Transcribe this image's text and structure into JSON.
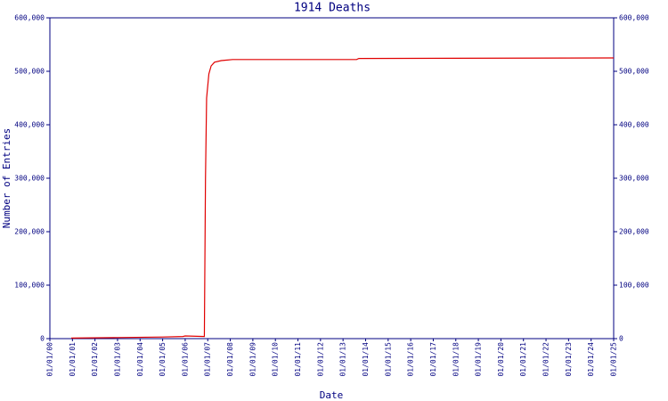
{
  "chart_data": {
    "type": "line",
    "title": "1914 Deaths",
    "x_label": "Date",
    "y_label": "Number of Entries",
    "x": [
      0.95,
      3,
      5,
      5.9,
      6.0,
      6.85,
      6.9,
      6.95,
      7.05,
      7.15,
      7.3,
      7.6,
      8.1,
      13.6,
      13.7,
      25
    ],
    "series": [
      {
        "color": "#e00000",
        "values": [
          1000,
          2000,
          3000,
          4000,
          5000,
          4000,
          300000,
          450000,
          495000,
          510000,
          517000,
          520000,
          522000,
          522000,
          524000,
          525000
        ]
      }
    ],
    "xlim": [
      0,
      25
    ],
    "xticks": [
      {
        "value": 0,
        "label": "01/01/00"
      },
      {
        "value": 1,
        "label": "01/01/01"
      },
      {
        "value": 2,
        "label": "01/01/02"
      },
      {
        "value": 3,
        "label": "01/01/03"
      },
      {
        "value": 4,
        "label": "01/01/04"
      },
      {
        "value": 5,
        "label": "01/01/05"
      },
      {
        "value": 6,
        "label": "01/01/06"
      },
      {
        "value": 7,
        "label": "01/01/07"
      },
      {
        "value": 8,
        "label": "01/01/08"
      },
      {
        "value": 9,
        "label": "01/01/09"
      },
      {
        "value": 10,
        "label": "01/01/10"
      },
      {
        "value": 11,
        "label": "01/01/11"
      },
      {
        "value": 12,
        "label": "01/01/12"
      },
      {
        "value": 13,
        "label": "01/01/13"
      },
      {
        "value": 14,
        "label": "01/01/14"
      },
      {
        "value": 15,
        "label": "01/01/15"
      },
      {
        "value": 16,
        "label": "01/01/16"
      },
      {
        "value": 17,
        "label": "01/01/17"
      },
      {
        "value": 18,
        "label": "01/01/18"
      },
      {
        "value": 19,
        "label": "01/01/19"
      },
      {
        "value": 20,
        "label": "01/01/20"
      },
      {
        "value": 21,
        "label": "01/01/21"
      },
      {
        "value": 22,
        "label": "01/01/22"
      },
      {
        "value": 23,
        "label": "01/01/23"
      },
      {
        "value": 24,
        "label": "01/01/24"
      },
      {
        "value": 25,
        "label": "01/01/25"
      }
    ],
    "ylim": [
      0,
      600000
    ],
    "yticks": [
      0,
      {
        "value": 100000,
        "label": "100,000"
      },
      {
        "value": 200000,
        "label": "200,000"
      },
      {
        "value": 300000,
        "label": "300,000"
      },
      {
        "value": 400000,
        "label": "400,000"
      },
      {
        "value": 500000,
        "label": "500,000"
      },
      {
        "value": 600000,
        "label": "600,000"
      }
    ],
    "y2lim": [
      0,
      600000
    ],
    "y2ticks": [
      0,
      {
        "value": 100000,
        "label": "100,000"
      },
      {
        "value": 200000,
        "label": "200,000"
      },
      {
        "value": 300000,
        "label": "300,000"
      },
      {
        "value": 400000,
        "label": "400,000"
      },
      {
        "value": 500000,
        "label": "500,000"
      },
      {
        "value": 600000,
        "label": "600,000"
      }
    ],
    "axis_color": "#000080"
  }
}
